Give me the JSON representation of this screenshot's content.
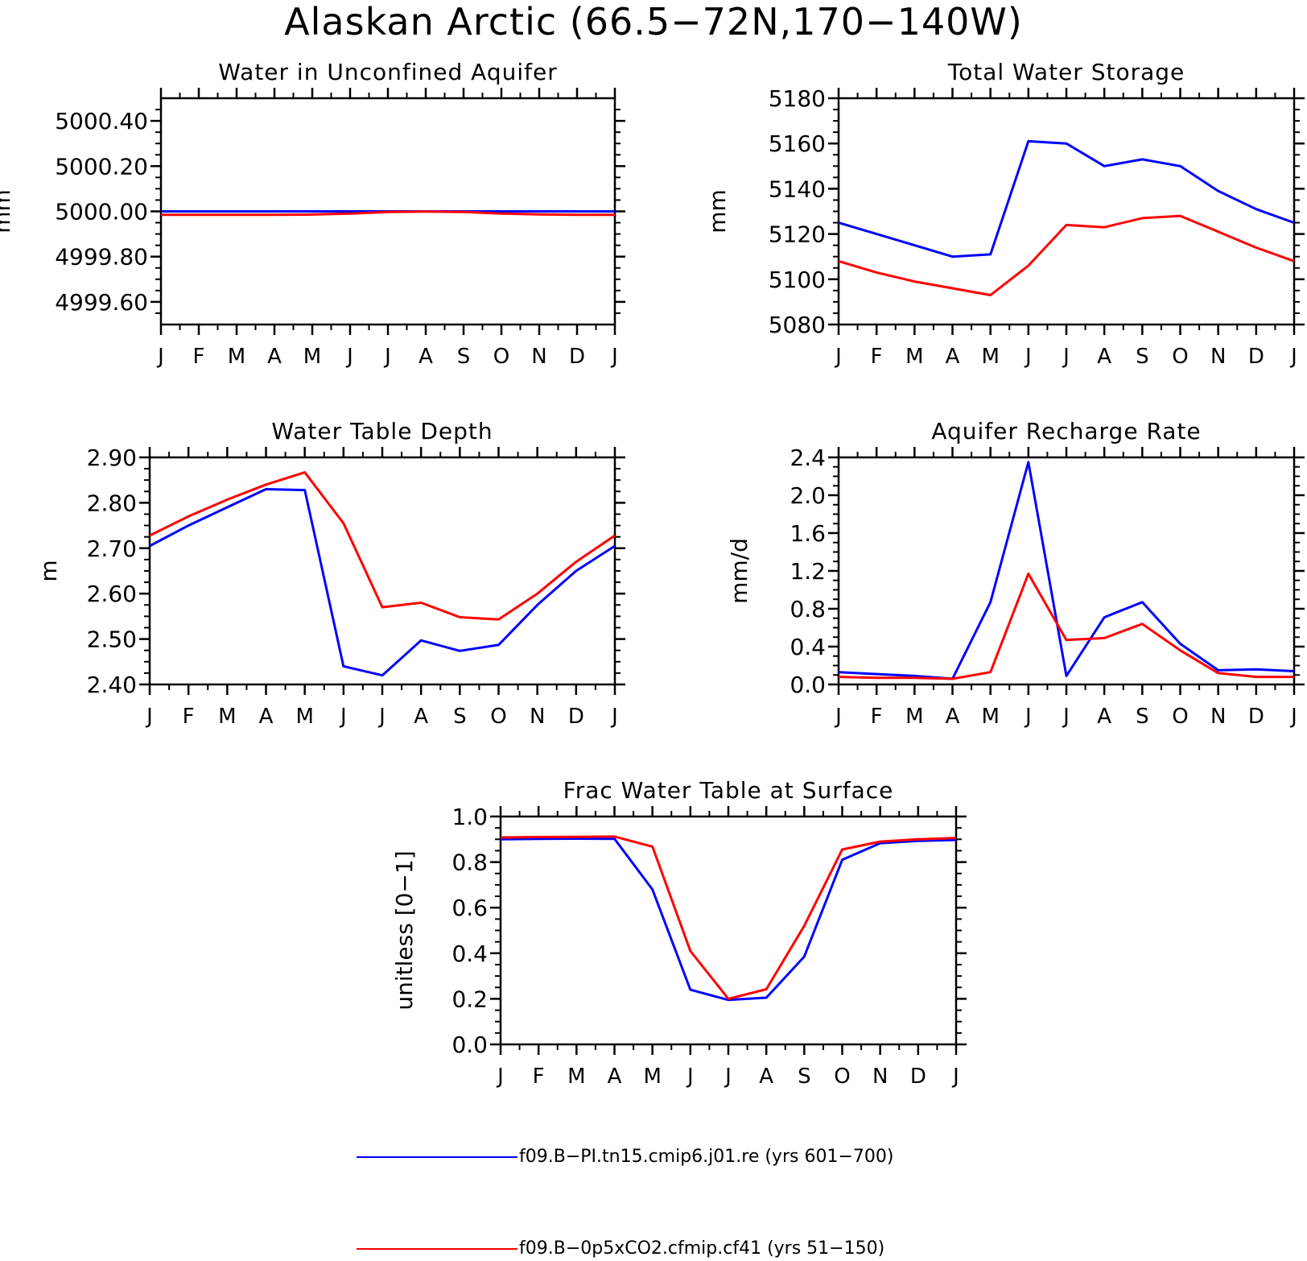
{
  "title": "Alaskan Arctic (66.5−72N,170−140W)",
  "colors": {
    "series1": "#0000ff",
    "series2": "#ff0000",
    "axis": "#000000"
  },
  "legend": [
    {
      "label": "f09.B−PI.tn15.cmip6.j01.re (yrs 601−700)",
      "color": "#0000ff"
    },
    {
      "label": "f09.B−0p5xCO2.cfmip.cf41 (yrs 51−150)",
      "color": "#ff0000"
    }
  ],
  "chart_data": [
    {
      "type": "line",
      "title": "Water in Unconfined Aquifer",
      "ylabel": "mm",
      "categories": [
        "J",
        "F",
        "M",
        "A",
        "M",
        "J",
        "J",
        "A",
        "S",
        "O",
        "N",
        "D",
        "J"
      ],
      "ylim": [
        4999.5,
        5000.5
      ],
      "yticks": [
        4999.6,
        4999.8,
        5000.0,
        5000.2,
        5000.4
      ],
      "yticklabels": [
        "4999.60",
        "4999.80",
        "5000.00",
        "5000.20",
        "5000.40"
      ],
      "minor_step": 0.05,
      "series": [
        {
          "values": [
            5000.0,
            5000.0,
            5000.0,
            5000.0,
            5000.0,
            5000.0,
            5000.0,
            5000.0,
            5000.0,
            5000.0,
            5000.0,
            5000.0,
            5000.0
          ]
        },
        {
          "values": [
            4999.985,
            4999.985,
            4999.985,
            4999.985,
            4999.986,
            4999.99,
            4999.997,
            4999.999,
            4999.997,
            4999.99,
            4999.987,
            4999.985,
            4999.985
          ]
        }
      ]
    },
    {
      "type": "line",
      "title": "Total Water Storage",
      "ylabel": "mm",
      "categories": [
        "J",
        "F",
        "M",
        "A",
        "M",
        "J",
        "J",
        "A",
        "S",
        "O",
        "N",
        "D",
        "J"
      ],
      "ylim": [
        5080,
        5180
      ],
      "yticks": [
        5080,
        5100,
        5120,
        5140,
        5160,
        5180
      ],
      "yticklabels": [
        "5080",
        "5100",
        "5120",
        "5140",
        "5160",
        "5180"
      ],
      "minor_step": 5,
      "series": [
        {
          "values": [
            5125,
            5120,
            5115,
            5110,
            5111,
            5161,
            5160,
            5150,
            5153,
            5150,
            5139,
            5131,
            5125
          ]
        },
        {
          "values": [
            5108,
            5103,
            5099,
            5096,
            5093,
            5106,
            5124,
            5123,
            5127,
            5128,
            5121,
            5114,
            5108
          ]
        }
      ]
    },
    {
      "type": "line",
      "title": "Water Table Depth",
      "ylabel": "m",
      "categories": [
        "J",
        "F",
        "M",
        "A",
        "M",
        "J",
        "J",
        "A",
        "S",
        "O",
        "N",
        "D",
        "J"
      ],
      "ylim": [
        2.4,
        2.9
      ],
      "yticks": [
        2.4,
        2.5,
        2.6,
        2.7,
        2.8,
        2.9
      ],
      "yticklabels": [
        "2.40",
        "2.50",
        "2.60",
        "2.70",
        "2.80",
        "2.90"
      ],
      "minor_step": 0.025,
      "series": [
        {
          "values": [
            2.705,
            2.75,
            2.79,
            2.83,
            2.828,
            2.44,
            2.42,
            2.497,
            2.474,
            2.487,
            2.575,
            2.65,
            2.705
          ]
        },
        {
          "values": [
            2.728,
            2.77,
            2.807,
            2.84,
            2.867,
            2.755,
            2.57,
            2.58,
            2.548,
            2.543,
            2.6,
            2.67,
            2.728
          ]
        }
      ]
    },
    {
      "type": "line",
      "title": "Aquifer Recharge Rate",
      "ylabel": "mm/d",
      "categories": [
        "J",
        "F",
        "M",
        "A",
        "M",
        "J",
        "J",
        "A",
        "S",
        "O",
        "N",
        "D",
        "J"
      ],
      "ylim": [
        0,
        2.4
      ],
      "yticks": [
        0,
        0.4,
        0.8,
        1.2,
        1.6,
        2.0,
        2.4
      ],
      "yticklabels": [
        "0.0",
        "0.4",
        "0.8",
        "1.2",
        "1.6",
        "2.0",
        "2.4"
      ],
      "minor_step": 0.1,
      "series": [
        {
          "values": [
            0.13,
            0.11,
            0.09,
            0.06,
            0.87,
            2.35,
            0.09,
            0.71,
            0.87,
            0.43,
            0.15,
            0.16,
            0.14
          ]
        },
        {
          "values": [
            0.08,
            0.07,
            0.07,
            0.06,
            0.13,
            1.17,
            0.47,
            0.49,
            0.64,
            0.36,
            0.12,
            0.08,
            0.08
          ]
        }
      ]
    },
    {
      "type": "line",
      "title": "Frac Water Table at Surface",
      "ylabel": "unitless [0−1]",
      "categories": [
        "J",
        "F",
        "M",
        "A",
        "M",
        "J",
        "J",
        "A",
        "S",
        "O",
        "N",
        "D",
        "J"
      ],
      "ylim": [
        0,
        1
      ],
      "yticks": [
        0,
        0.2,
        0.4,
        0.6,
        0.8,
        1.0
      ],
      "yticklabels": [
        "0.0",
        "0.2",
        "0.4",
        "0.6",
        "0.8",
        "1.0"
      ],
      "minor_step": 0.05,
      "series": [
        {
          "values": [
            0.9,
            0.902,
            0.903,
            0.902,
            0.68,
            0.24,
            0.195,
            0.205,
            0.385,
            0.81,
            0.883,
            0.893,
            0.897
          ]
        },
        {
          "values": [
            0.908,
            0.91,
            0.911,
            0.912,
            0.868,
            0.41,
            0.2,
            0.242,
            0.52,
            0.855,
            0.89,
            0.9,
            0.906
          ]
        }
      ]
    }
  ]
}
